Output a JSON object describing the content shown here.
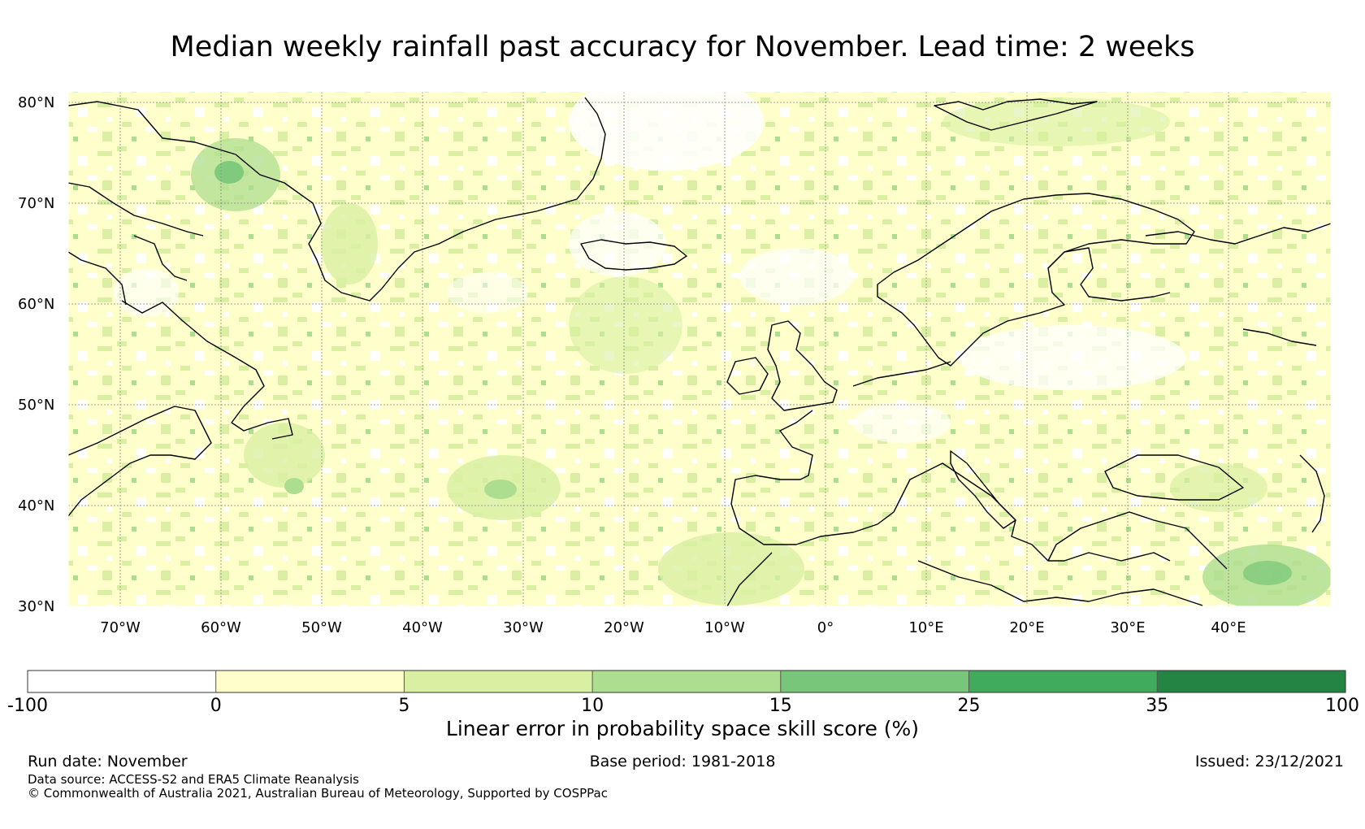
{
  "title": "Median weekly rainfall past accuracy for November. Lead time: 2 weeks",
  "map": {
    "lat_labels": [
      "80°N",
      "70°N",
      "60°N",
      "50°N",
      "40°N",
      "30°N"
    ],
    "lon_labels": [
      "70°W",
      "60°W",
      "50°W",
      "40°W",
      "30°W",
      "20°W",
      "10°W",
      "0°",
      "10°E",
      "20°E",
      "30°E",
      "40°E"
    ]
  },
  "colorbar": {
    "ticks": [
      "-100",
      "0",
      "5",
      "10",
      "15",
      "25",
      "35",
      "100"
    ],
    "colors": [
      "#ffffff",
      "#ffffcc",
      "#d9f0a3",
      "#addd8e",
      "#78c679",
      "#41ab5d",
      "#238443"
    ],
    "label": "Linear error in probability space skill score (%)"
  },
  "footer": {
    "run_date": "Run date: November",
    "base_period": "Base period: 1981-2018",
    "issued": "Issued: 23/12/2021",
    "data_source": "Data source: ACCESS-S2 and ERA5 Climate Reanalysis",
    "copyright": "© Commonwealth of Australia 2021, Australian Bureau of Meteorology, Supported by COSPPac"
  }
}
